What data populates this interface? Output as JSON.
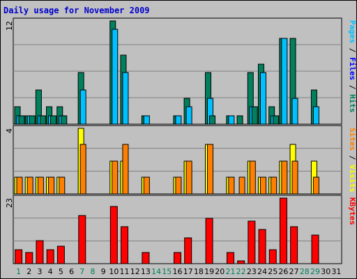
{
  "title": "Daily usage for November 2009",
  "colors": {
    "pages": "#008060",
    "files": "#00c0ff",
    "hits": "#00805c",
    "visits": "#ffff00",
    "sites": "#ff8000",
    "kbytes": "#ff0000",
    "weekend_day": "#00805c",
    "weekday": "#000000",
    "title": "#0000cc"
  },
  "chart_data": [
    {
      "type": "bar",
      "panel": "top",
      "ymax_label": "12",
      "ylim": [
        0,
        12
      ],
      "right_labels": [
        {
          "text": "Pages",
          "color": "#00c0ff"
        },
        {
          "text": " / ",
          "color": "#000000"
        },
        {
          "text": "Files",
          "color": "#0000ff"
        },
        {
          "text": " / ",
          "color": "#000000"
        },
        {
          "text": "Hits",
          "color": "#00805c"
        }
      ],
      "categories": [
        "1",
        "2",
        "3",
        "4",
        "5",
        "6",
        "7",
        "8",
        "9",
        "10",
        "11",
        "12",
        "13",
        "14",
        "15",
        "16",
        "17",
        "18",
        "19",
        "20",
        "21",
        "22",
        "23",
        "24",
        "25",
        "26",
        "27",
        "28",
        "29",
        "30",
        "31"
      ],
      "series": [
        {
          "name": "Hits",
          "values": [
            2,
            1,
            4,
            2,
            2,
            0,
            6,
            0,
            0,
            12,
            8,
            0,
            1,
            0,
            0,
            1,
            3,
            0,
            6,
            0,
            1,
            1,
            6,
            7,
            2,
            10,
            10,
            0,
            4,
            0,
            0
          ]
        },
        {
          "name": "Files",
          "values": [
            1,
            1,
            1,
            1,
            1,
            0,
            4,
            0,
            0,
            11,
            6,
            0,
            1,
            0,
            0,
            1,
            2,
            0,
            3,
            0,
            1,
            0,
            2,
            6,
            1,
            10,
            3,
            0,
            2,
            0,
            0
          ]
        },
        {
          "name": "Pages",
          "values": [
            1,
            1,
            1,
            1,
            1,
            0,
            0,
            0,
            0,
            0,
            0,
            0,
            0,
            0,
            0,
            0,
            0,
            0,
            1,
            0,
            0,
            0,
            2,
            0,
            1,
            0,
            0,
            0,
            0,
            0,
            0
          ]
        }
      ]
    },
    {
      "type": "bar",
      "panel": "middle",
      "ymax_label": "4",
      "ylim": [
        0,
        4
      ],
      "right_labels": [
        {
          "text": "Sites",
          "color": "#ff8000"
        },
        {
          "text": " / ",
          "color": "#000000"
        },
        {
          "text": "Visits",
          "color": "#ffff00"
        }
      ],
      "categories": [
        "1",
        "2",
        "3",
        "4",
        "5",
        "6",
        "7",
        "8",
        "9",
        "10",
        "11",
        "12",
        "13",
        "14",
        "15",
        "16",
        "17",
        "18",
        "19",
        "20",
        "21",
        "22",
        "23",
        "24",
        "25",
        "26",
        "27",
        "28",
        "29",
        "30",
        "31"
      ],
      "series": [
        {
          "name": "Visits",
          "values": [
            1,
            1,
            1,
            1,
            1,
            0,
            4,
            0,
            0,
            2,
            2,
            0,
            1,
            0,
            0,
            1,
            2,
            0,
            3,
            0,
            1,
            0,
            2,
            1,
            1,
            2,
            3,
            0,
            2,
            0,
            0
          ]
        },
        {
          "name": "Sites",
          "values": [
            1,
            1,
            1,
            1,
            1,
            0,
            3,
            0,
            0,
            2,
            3,
            0,
            1,
            0,
            0,
            1,
            2,
            0,
            3,
            0,
            1,
            1,
            2,
            1,
            1,
            2,
            2,
            0,
            1,
            0,
            0
          ]
        }
      ]
    },
    {
      "type": "bar",
      "panel": "bottom",
      "ymax_label": "23",
      "ylim": [
        0,
        23
      ],
      "right_labels": [
        {
          "text": "KBytes",
          "color": "#ff0000"
        }
      ],
      "categories": [
        "1",
        "2",
        "3",
        "4",
        "5",
        "6",
        "7",
        "8",
        "9",
        "10",
        "11",
        "12",
        "13",
        "14",
        "15",
        "16",
        "17",
        "18",
        "19",
        "20",
        "21",
        "22",
        "23",
        "24",
        "25",
        "26",
        "27",
        "28",
        "29",
        "30",
        "31"
      ],
      "series": [
        {
          "name": "KBytes",
          "values": [
            5,
            4,
            8,
            5,
            6,
            0,
            17,
            0,
            0,
            20,
            13,
            0,
            4,
            0,
            0,
            4,
            9,
            0,
            16,
            0,
            4,
            1,
            15,
            12,
            5,
            23,
            13,
            0,
            10,
            0,
            0
          ]
        }
      ]
    }
  ],
  "weekend_days": [
    1,
    7,
    8,
    14,
    15,
    21,
    22,
    28,
    29
  ]
}
